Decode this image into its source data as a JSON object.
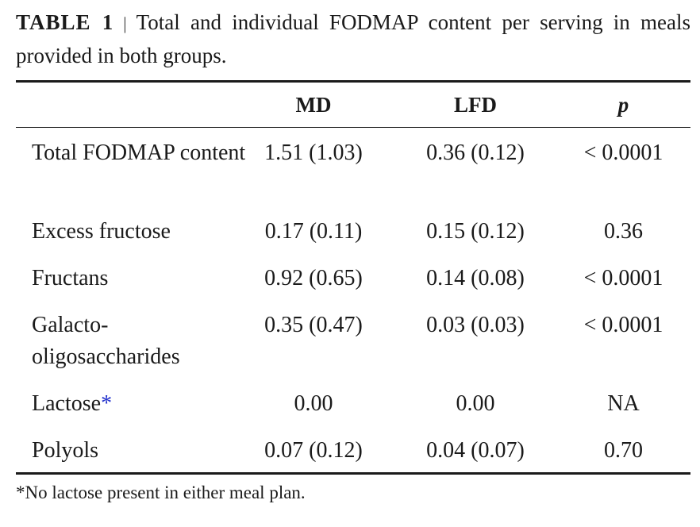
{
  "caption": {
    "label": "TABLE 1",
    "separator": "|",
    "text": "Total and individual FODMAP content per serving in meals provided in both groups."
  },
  "table": {
    "headers": [
      "",
      "MD",
      "LFD",
      "p"
    ],
    "rows": [
      {
        "name": "Total FODMAP content",
        "name_marker": "",
        "md": "1.51 (1.03)",
        "lfd": "0.36 (0.12)",
        "p": "< 0.0001"
      },
      {
        "name": "Excess fructose",
        "name_marker": "",
        "md": "0.17 (0.11)",
        "lfd": "0.15 (0.12)",
        "p": "0.36"
      },
      {
        "name": "Fructans",
        "name_marker": "",
        "md": "0.92 (0.65)",
        "lfd": "0.14 (0.08)",
        "p": "< 0.0001"
      },
      {
        "name": "Galacto-oligosaccharides",
        "name_marker": "",
        "md": "0.35 (0.47)",
        "lfd": "0.03 (0.03)",
        "p": "< 0.0001"
      },
      {
        "name": "Lactose",
        "name_marker": "*",
        "md": "0.00",
        "lfd": "0.00",
        "p": "NA"
      },
      {
        "name": "Polyols",
        "name_marker": "",
        "md": "0.07 (0.12)",
        "lfd": "0.04 (0.07)",
        "p": "0.70"
      }
    ]
  },
  "footnote": "*No lactose present in either meal plan.",
  "colors": {
    "text": "#1a1a1a",
    "footnote_marker": "#1f2ecc"
  }
}
